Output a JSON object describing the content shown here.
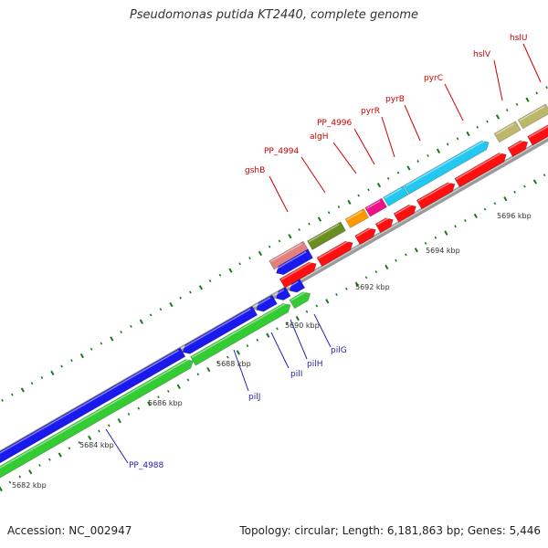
{
  "title": "Pseudomonas putida KT2440, complete genome",
  "footer": {
    "accession": "Accession: NC_002947",
    "topology": "Topology: circular; Length: 6,181,863 bp; Genes: 5,446"
  },
  "scale_labels": [
    "5682 kbp",
    "5684 kbp",
    "5686 kbp",
    "5688 kbp",
    "5690 kbp",
    "5692 kbp",
    "5694 kbp",
    "5696 kbp"
  ],
  "gene_labels_top": [
    "gshB",
    "PP_4994",
    "algH",
    "PP_4996",
    "pyrR",
    "pyrB",
    "pyrC",
    "hslV",
    "hslU"
  ],
  "gene_labels_bottom": [
    "PP_4988",
    "pilJ",
    "pilI",
    "pilH",
    "pilG"
  ],
  "colors": {
    "backbone": "#8c8c8c",
    "forward_cds": "#ff1010",
    "reverse_cds": "#1a1aee",
    "green_cds": "#33cc33",
    "olive_cds": "#6b8e23",
    "khaki_cds": "#bdb76b",
    "cyan_cds": "#22c8f0",
    "orange_cds": "#ff9900",
    "magenta_cds": "#ee1188",
    "pink_cds": "#e08080",
    "tick": "#1a7a1a",
    "label_red": "#cc0000",
    "label_blue": "#2222aa"
  }
}
